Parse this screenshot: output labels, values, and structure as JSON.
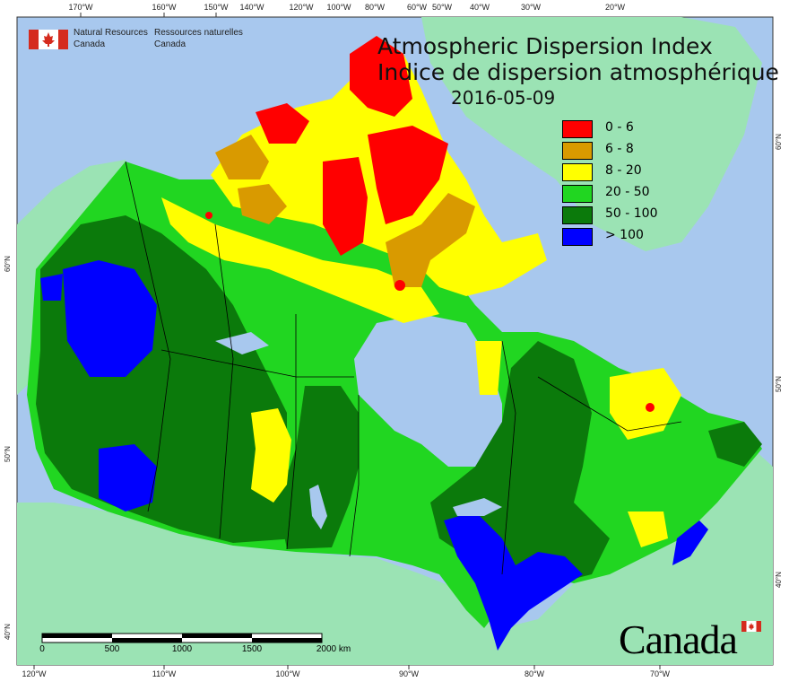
{
  "agency": {
    "name_en_line1": "Natural Resources",
    "name_en_line2": "Canada",
    "name_fr_line1": "Ressources naturelles",
    "name_fr_line2": "Canada"
  },
  "title": {
    "en": "Atmospheric Dispersion Index",
    "fr": "Indice de dispersion atmosphérique",
    "date": "2016-05-09"
  },
  "legend": [
    {
      "label": "0 - 6",
      "color": "#ff0000"
    },
    {
      "label": "6 - 8",
      "color": "#d99a00"
    },
    {
      "label": "8 - 20",
      "color": "#ffff00"
    },
    {
      "label": "20 - 50",
      "color": "#21d621"
    },
    {
      "label": "50 - 100",
      "color": "#0b7a0b"
    },
    {
      "label": "> 100",
      "color": "#0000ff"
    }
  ],
  "graticule": {
    "top": [
      "170°W",
      "160°W",
      "150°W",
      "140°W",
      "120°W",
      "100°W",
      "80°W",
      "60°W",
      "50°W",
      "40°W",
      "30°W",
      "20°W"
    ],
    "bottom": [
      "120°W",
      "110°W",
      "100°W",
      "90°W",
      "80°W",
      "70°W"
    ],
    "left": [
      "60°N",
      "50°N",
      "40°N"
    ],
    "right": [
      "60°N",
      "50°N",
      "40°N"
    ]
  },
  "scalebar": {
    "ticks": [
      "0",
      "500",
      "1000",
      "1500",
      "2000 km"
    ]
  },
  "wordmark": "Canada",
  "colors": {
    "ocean": "#a8c8ee",
    "land_outside": "#9be3b4"
  }
}
